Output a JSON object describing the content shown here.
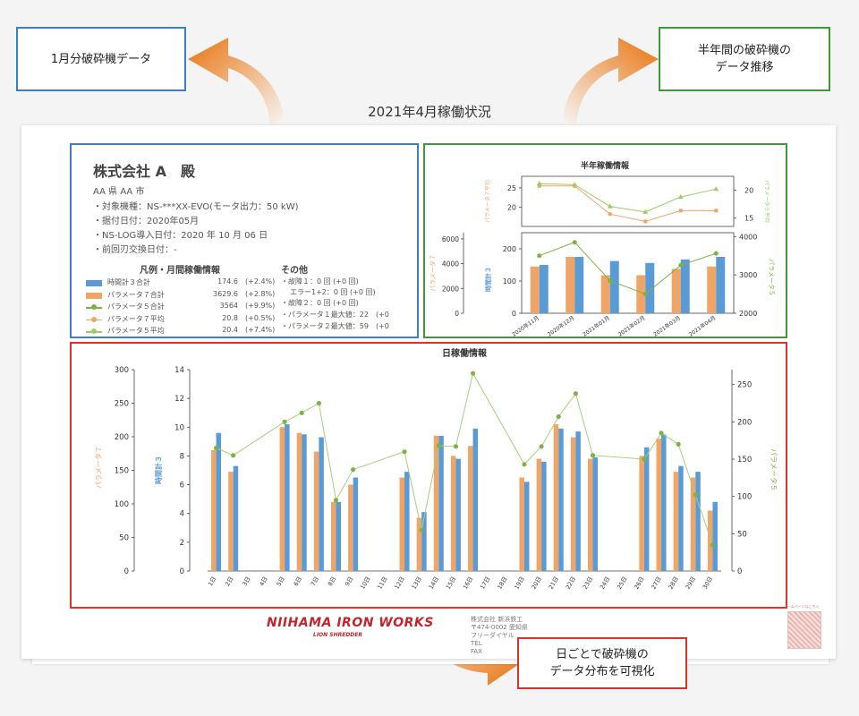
{
  "callouts": {
    "monthly": "1月分破砕機データ",
    "half_year": "半年間の破砕機の\nデータ推移",
    "daily": "日ごとで破砕機の\nデータ分布を可視化"
  },
  "report_title": "2021年4月稼働状況",
  "info": {
    "company": "株式会社 A　殿",
    "city": "AA 県 AA 市",
    "lines": [
      "・対象機種：NS-***XX-EVO(モータ出力：50 kW)",
      "・据付日付：2020年05月",
      "・NS-LOG導入日付：2020 年 10 月 06 日",
      "・前回刃交換日付：-"
    ]
  },
  "legend": {
    "title": "凡例・月間稼働情報",
    "rows": [
      {
        "label": "時間計３合計",
        "value": "174.6",
        "change": "(+2.4%)",
        "color": "#5b9bd5",
        "kind": "bar"
      },
      {
        "label": "パラメータ７合計",
        "value": "3629.6",
        "change": "(+2.8%)",
        "color": "#f0a466",
        "kind": "bar"
      },
      {
        "label": "パラメータ５合計",
        "value": "3564",
        "change": "(+9.9%)",
        "color": "#7cb342",
        "kind": "dotline"
      },
      {
        "label": "パラメータ７平均",
        "value": "20.8",
        "change": "(+0.5%)",
        "color": "#f0a466",
        "kind": "dotline"
      },
      {
        "label": "パラメータ５平均",
        "value": "20.4",
        "change": "(+7.4%)",
        "color": "#9ccc65",
        "kind": "dotline"
      }
    ]
  },
  "other": {
    "title": "その他",
    "lines": [
      "・故障１：0 回 (+0 回)",
      "エラー1+2：0 回 (+0 回)",
      "・故障２：0 回 (+0 回)",
      "・パラメータ１最大値：22　(+0",
      "・パラメータ２最大値：59　(+0"
    ]
  },
  "footer": {
    "logo": "NIIHAMA IRON WORKS",
    "logo_sub": "LION SHREDDER",
    "address": [
      "株式会社 新浜鉄工",
      "〒474-0002 愛知県",
      "フリーダイヤル",
      "TEL",
      "FAX"
    ],
    "qr_caption": "ホームページはこちら"
  },
  "chart_data": [
    {
      "id": "half_year",
      "type": "bar",
      "title": "半年稼働情報",
      "categories": [
        "2020年11月",
        "2020年12月",
        "2021年01月",
        "2021年02月",
        "2021年03月",
        "2021年04月"
      ],
      "top_panel": {
        "left_axis_label": "パラメータ７平均",
        "right_axis_label": "パラメータ５平均",
        "left_ylim": [
          15,
          28
        ],
        "left_ticks": [
          20,
          25
        ],
        "right_ylim": [
          13.5,
          22.5
        ],
        "right_ticks": [
          15,
          20
        ],
        "series": [
          {
            "name": "パラメータ７平均",
            "axis": "left",
            "color": "#f0a466",
            "values": [
              25.5,
              25.5,
              18.2,
              16.3,
              19.1,
              19.1
            ]
          },
          {
            "name": "パラメータ５平均",
            "axis": "right",
            "color": "#9ccc65",
            "values": [
              21.2,
              21.0,
              17.1,
              16.1,
              18.8,
              20.2
            ]
          }
        ]
      },
      "bottom_panel": {
        "left_axis_label": "時間計３",
        "left2_axis_label": "パラメータ７",
        "right_axis_label": "パラメータ５",
        "left_ylim": [
          0,
          250
        ],
        "left_ticks": [
          0,
          100,
          200
        ],
        "left2_ylim": [
          0,
          6500
        ],
        "left2_ticks": [
          0,
          2000,
          4000,
          6000
        ],
        "right_ylim": [
          2000,
          4100
        ],
        "right_ticks": [
          2000,
          3000,
          4000
        ],
        "series": [
          {
            "name": "パラメータ７合計",
            "axis": "left",
            "kind": "bar",
            "color": "#f0a466",
            "values": [
              145,
              175,
              118,
              118,
              138,
              145
            ]
          },
          {
            "name": "時間計３合計",
            "axis": "left",
            "kind": "bar",
            "color": "#5b9bd5",
            "values": [
              150,
              175,
              162,
              156,
              167,
              175
            ]
          },
          {
            "name": "パラメータ５合計",
            "axis": "right",
            "kind": "line",
            "color": "#7cb342",
            "values": [
              3500,
              3850,
              2850,
              2500,
              3250,
              3560
            ]
          }
        ]
      }
    },
    {
      "id": "daily",
      "type": "bar",
      "title": "日稼働情報",
      "categories": [
        "1日",
        "2日",
        "3日",
        "4日",
        "5日",
        "6日",
        "7日",
        "8日",
        "9日",
        "10日",
        "11日",
        "12日",
        "13日",
        "14日",
        "15日",
        "16日",
        "17日",
        "18日",
        "19日",
        "20日",
        "21日",
        "22日",
        "23日",
        "24日",
        "25日",
        "26日",
        "27日",
        "28日",
        "29日",
        "30日"
      ],
      "left_axis_label": "パラメータ７",
      "left2_axis_label": "時間計３",
      "right_axis_label": "パラメータ５",
      "param7_ylim": [
        0,
        300
      ],
      "param7_ticks": [
        0,
        50,
        100,
        150,
        200,
        250,
        300
      ],
      "hours_ylim": [
        0,
        14
      ],
      "hours_ticks": [
        0,
        2,
        4,
        6,
        8,
        10,
        12,
        14
      ],
      "param5_ylim": [
        0,
        270
      ],
      "param5_ticks": [
        0,
        50,
        100,
        150,
        200,
        250
      ],
      "series": [
        {
          "name": "パラメータ７",
          "axis": "hours",
          "kind": "bar",
          "color": "#f0a466",
          "values": [
            8.4,
            6.9,
            0,
            0,
            10.0,
            9.6,
            8.3,
            4.8,
            6.0,
            0,
            0,
            6.5,
            3.7,
            9.4,
            8.0,
            8.7,
            0,
            0,
            6.5,
            7.8,
            10.2,
            9.3,
            7.8,
            0,
            0,
            8.0,
            9.2,
            6.9,
            6.5,
            4.2
          ]
        },
        {
          "name": "時間計３",
          "axis": "hours",
          "kind": "bar",
          "color": "#5b9bd5",
          "values": [
            9.6,
            7.3,
            0,
            0,
            10.2,
            9.5,
            9.3,
            4.8,
            6.5,
            0,
            0,
            6.9,
            4.1,
            9.4,
            7.8,
            9.9,
            0,
            0,
            6.2,
            7.6,
            9.9,
            9.7,
            7.9,
            0,
            0,
            8.6,
            9.5,
            7.3,
            6.9,
            4.8
          ]
        },
        {
          "name": "パラメータ５",
          "axis": "param5",
          "kind": "line",
          "color": "#7cb342",
          "values": [
            165,
            155,
            null,
            null,
            200,
            212,
            225,
            95,
            136,
            null,
            null,
            160,
            55,
            168,
            167,
            265,
            null,
            null,
            143,
            167,
            207,
            238,
            155,
            null,
            null,
            150,
            185,
            170,
            102,
            35
          ]
        }
      ]
    }
  ],
  "colors": {
    "blue_box": "#3d7fc4",
    "green_box": "#3c9a3c",
    "red_box": "#d8342c",
    "arrow": "#e8740f"
  }
}
